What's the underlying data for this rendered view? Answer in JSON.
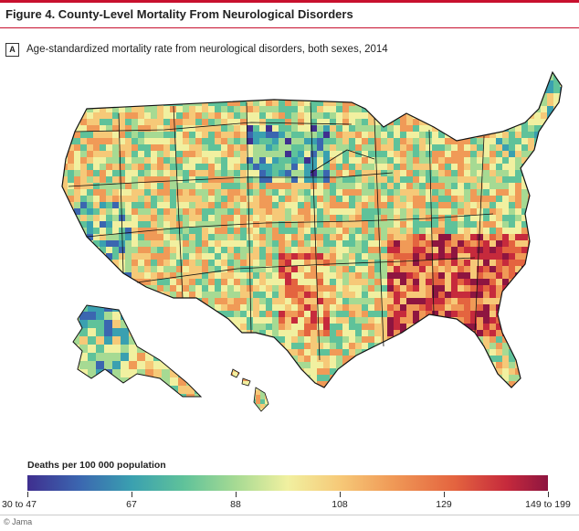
{
  "figure": {
    "title": "Figure 4. County-Level Mortality From Neurological Disorders",
    "panel_label": "A",
    "panel_title": "Age-standardized mortality rate from neurological disorders, both sexes, 2014"
  },
  "map": {
    "scheme_colors": [
      "#3f2f8f",
      "#3b66b0",
      "#3aa0b0",
      "#5fc29a",
      "#a6da93",
      "#f1f0a0",
      "#f6c978",
      "#f09a57",
      "#e4643f",
      "#c62a3c",
      "#8e1540"
    ]
  },
  "legend": {
    "title": "Deaths per 100 000 population",
    "ticks": [
      {
        "label": "30 to 47",
        "frac": 0.0
      },
      {
        "label": "67",
        "frac": 0.2
      },
      {
        "label": "88",
        "frac": 0.4
      },
      {
        "label": "108",
        "frac": 0.6
      },
      {
        "label": "129",
        "frac": 0.8
      },
      {
        "label": "149 to 199",
        "frac": 1.0
      }
    ]
  },
  "credit": "© Jama"
}
